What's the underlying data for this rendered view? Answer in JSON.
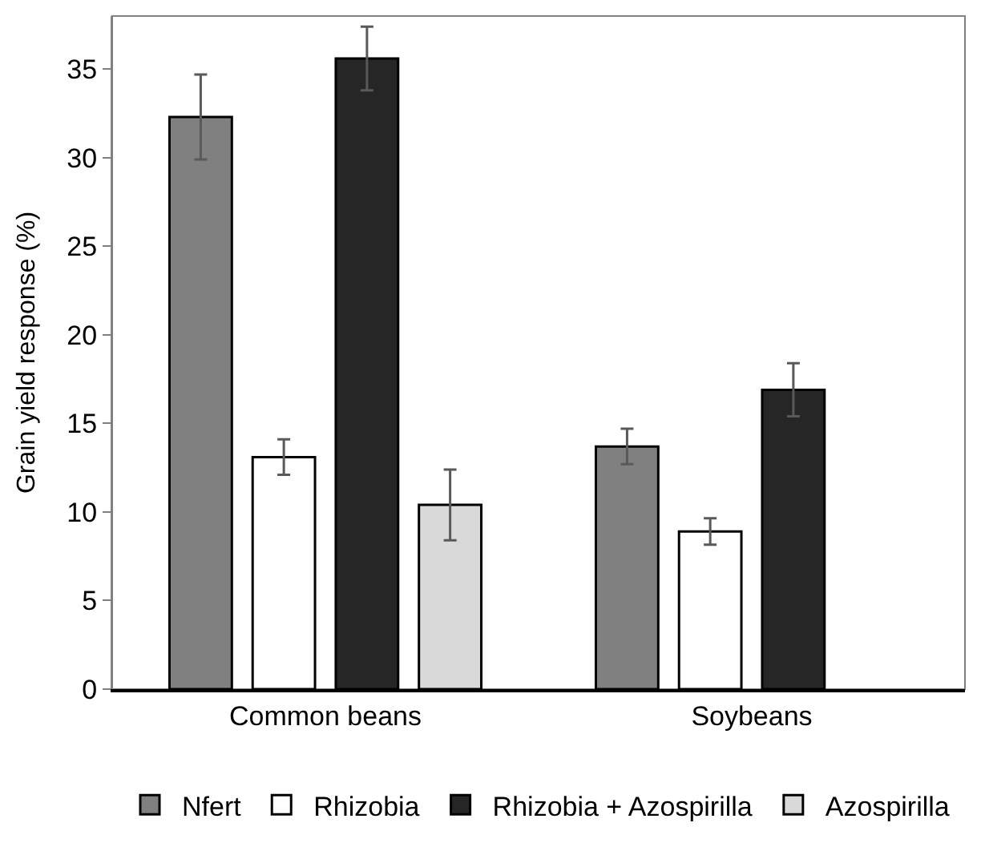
{
  "chart_data": {
    "type": "bar",
    "ylabel": "Grain yield response (%)",
    "categories": [
      "Common beans",
      "Soybeans"
    ],
    "series": [
      {
        "name": "Nfert",
        "color": "#808080",
        "values": [
          32.3,
          13.7
        ],
        "errors": [
          2.4,
          1.0
        ]
      },
      {
        "name": "Rhizobia",
        "color": "#ffffff",
        "values": [
          13.1,
          8.9
        ],
        "errors": [
          1.0,
          0.75
        ]
      },
      {
        "name": "Rhizobia + Azospirilla",
        "color": "#262626",
        "values": [
          35.6,
          16.9
        ],
        "errors": [
          1.8,
          1.5
        ]
      },
      {
        "name": "Azospirilla",
        "color": "#d9d9d9",
        "values": [
          10.4,
          null
        ],
        "errors": [
          2.0,
          null
        ]
      }
    ],
    "ylim": [
      0,
      38
    ],
    "yticks": [
      0,
      5,
      10,
      15,
      20,
      25,
      30,
      35
    ],
    "grid": false,
    "legend": "bottom"
  }
}
